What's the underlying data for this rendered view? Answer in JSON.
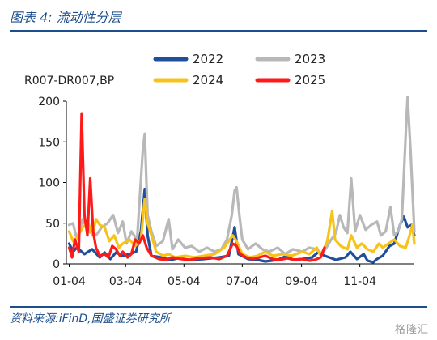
{
  "header": {
    "title": "图表 4:  流动性分层"
  },
  "footer": {
    "source": "资料来源:iFinD,国盛证券研究所",
    "watermark": "格隆汇"
  },
  "chart_data": {
    "type": "line",
    "title": "",
    "ylabel": "R007-DR007,BP",
    "xlabel": "",
    "ylim": [
      0,
      200
    ],
    "yticks": [
      0,
      50,
      100,
      150,
      200
    ],
    "x_domain": [
      "01-01",
      "12-31"
    ],
    "x_tick_labels": [
      "01-04",
      "03-04",
      "05-04",
      "07-04",
      "09-04",
      "11-04"
    ],
    "grid": false,
    "legend_position": "top",
    "series": [
      {
        "name": "2022",
        "color": "#1f4e9c",
        "points": [
          [
            "01-04",
            25
          ],
          [
            "01-08",
            15
          ],
          [
            "01-12",
            20
          ],
          [
            "01-20",
            12
          ],
          [
            "01-28",
            18
          ],
          [
            "02-05",
            8
          ],
          [
            "02-10",
            14
          ],
          [
            "02-16",
            6
          ],
          [
            "02-22",
            14
          ],
          [
            "03-01",
            10
          ],
          [
            "03-08",
            12
          ],
          [
            "03-15",
            15
          ],
          [
            "03-20",
            40
          ],
          [
            "03-24",
            92
          ],
          [
            "03-27",
            35
          ],
          [
            "03-31",
            10
          ],
          [
            "04-10",
            8
          ],
          [
            "04-20",
            5
          ],
          [
            "04-28",
            7
          ],
          [
            "05-10",
            5
          ],
          [
            "05-25",
            6
          ],
          [
            "06-10",
            8
          ],
          [
            "06-20",
            10
          ],
          [
            "06-26",
            45
          ],
          [
            "06-30",
            12
          ],
          [
            "07-10",
            6
          ],
          [
            "07-20",
            5
          ],
          [
            "07-28",
            3
          ],
          [
            "08-10",
            5
          ],
          [
            "08-20",
            10
          ],
          [
            "08-26",
            5
          ],
          [
            "09-05",
            6
          ],
          [
            "09-15",
            8
          ],
          [
            "09-22",
            15
          ],
          [
            "09-28",
            10
          ],
          [
            "10-10",
            5
          ],
          [
            "10-20",
            8
          ],
          [
            "10-25",
            15
          ],
          [
            "11-01",
            6
          ],
          [
            "11-08",
            12
          ],
          [
            "11-12",
            4
          ],
          [
            "11-18",
            2
          ],
          [
            "11-22",
            6
          ],
          [
            "11-28",
            10
          ],
          [
            "12-05",
            22
          ],
          [
            "12-10",
            25
          ],
          [
            "12-16",
            48
          ],
          [
            "12-20",
            58
          ],
          [
            "12-24",
            45
          ],
          [
            "12-28",
            48
          ],
          [
            "12-31",
            35
          ]
        ]
      },
      {
        "name": "2023",
        "color": "#b8b8b8",
        "points": [
          [
            "01-04",
            48
          ],
          [
            "01-08",
            50
          ],
          [
            "01-12",
            30
          ],
          [
            "01-18",
            55
          ],
          [
            "01-24",
            40
          ],
          [
            "02-01",
            35
          ],
          [
            "02-07",
            45
          ],
          [
            "02-13",
            50
          ],
          [
            "02-19",
            60
          ],
          [
            "02-24",
            38
          ],
          [
            "03-01",
            52
          ],
          [
            "03-05",
            25
          ],
          [
            "03-10",
            40
          ],
          [
            "03-16",
            30
          ],
          [
            "03-22",
            140
          ],
          [
            "03-24",
            160
          ],
          [
            "03-27",
            60
          ],
          [
            "03-31",
            40
          ],
          [
            "04-05",
            22
          ],
          [
            "04-12",
            28
          ],
          [
            "04-18",
            55
          ],
          [
            "04-22",
            18
          ],
          [
            "04-28",
            30
          ],
          [
            "05-05",
            20
          ],
          [
            "05-12",
            22
          ],
          [
            "05-20",
            15
          ],
          [
            "05-28",
            20
          ],
          [
            "06-05",
            15
          ],
          [
            "06-12",
            18
          ],
          [
            "06-18",
            30
          ],
          [
            "06-23",
            60
          ],
          [
            "06-26",
            90
          ],
          [
            "06-28",
            94
          ],
          [
            "07-01",
            60
          ],
          [
            "07-04",
            30
          ],
          [
            "07-10",
            18
          ],
          [
            "07-18",
            25
          ],
          [
            "07-25",
            18
          ],
          [
            "08-01",
            15
          ],
          [
            "08-10",
            20
          ],
          [
            "08-18",
            12
          ],
          [
            "08-26",
            18
          ],
          [
            "09-05",
            15
          ],
          [
            "09-12",
            20
          ],
          [
            "09-20",
            18
          ],
          [
            "09-25",
            12
          ],
          [
            "09-30",
            20
          ],
          [
            "10-05",
            30
          ],
          [
            "10-10",
            38
          ],
          [
            "10-14",
            60
          ],
          [
            "10-18",
            45
          ],
          [
            "10-22",
            38
          ],
          [
            "10-26",
            105
          ],
          [
            "10-30",
            40
          ],
          [
            "11-04",
            60
          ],
          [
            "11-10",
            42
          ],
          [
            "11-16",
            48
          ],
          [
            "11-22",
            52
          ],
          [
            "11-26",
            35
          ],
          [
            "12-01",
            40
          ],
          [
            "12-06",
            70
          ],
          [
            "12-10",
            35
          ],
          [
            "12-14",
            40
          ],
          [
            "12-18",
            55
          ],
          [
            "12-22",
            160
          ],
          [
            "12-24",
            205
          ],
          [
            "12-27",
            140
          ],
          [
            "12-31",
            40
          ]
        ]
      },
      {
        "name": "2024",
        "color": "#f7c31b",
        "points": [
          [
            "01-04",
            40
          ],
          [
            "01-08",
            28
          ],
          [
            "01-12",
            32
          ],
          [
            "01-18",
            45
          ],
          [
            "01-24",
            50
          ],
          [
            "01-28",
            35
          ],
          [
            "02-01",
            55
          ],
          [
            "02-05",
            48
          ],
          [
            "02-10",
            45
          ],
          [
            "02-15",
            28
          ],
          [
            "02-20",
            35
          ],
          [
            "02-25",
            20
          ],
          [
            "03-01",
            25
          ],
          [
            "03-08",
            30
          ],
          [
            "03-14",
            22
          ],
          [
            "03-20",
            30
          ],
          [
            "03-24",
            80
          ],
          [
            "03-27",
            50
          ],
          [
            "03-31",
            35
          ],
          [
            "04-05",
            15
          ],
          [
            "04-12",
            10
          ],
          [
            "04-18",
            12
          ],
          [
            "04-25",
            8
          ],
          [
            "05-05",
            10
          ],
          [
            "05-15",
            8
          ],
          [
            "05-25",
            10
          ],
          [
            "06-05",
            12
          ],
          [
            "06-15",
            20
          ],
          [
            "06-24",
            35
          ],
          [
            "06-28",
            28
          ],
          [
            "07-04",
            12
          ],
          [
            "07-12",
            8
          ],
          [
            "07-20",
            10
          ],
          [
            "07-28",
            15
          ],
          [
            "08-05",
            10
          ],
          [
            "08-15",
            12
          ],
          [
            "08-25",
            10
          ],
          [
            "09-05",
            15
          ],
          [
            "09-12",
            12
          ],
          [
            "09-20",
            20
          ],
          [
            "09-24",
            10
          ],
          [
            "10-01",
            28
          ],
          [
            "10-06",
            65
          ],
          [
            "10-09",
            30
          ],
          [
            "10-15",
            22
          ],
          [
            "10-22",
            18
          ],
          [
            "10-26",
            35
          ],
          [
            "11-01",
            20
          ],
          [
            "11-06",
            25
          ],
          [
            "11-12",
            18
          ],
          [
            "11-18",
            15
          ],
          [
            "11-24",
            25
          ],
          [
            "11-28",
            20
          ],
          [
            "12-04",
            25
          ],
          [
            "12-10",
            30
          ],
          [
            "12-16",
            22
          ],
          [
            "12-22",
            20
          ],
          [
            "12-26",
            35
          ],
          [
            "12-29",
            48
          ],
          [
            "12-31",
            25
          ]
        ]
      },
      {
        "name": "2025",
        "color": "#ff1a1a",
        "points": [
          [
            "01-04",
            20
          ],
          [
            "01-07",
            8
          ],
          [
            "01-10",
            30
          ],
          [
            "01-14",
            15
          ],
          [
            "01-17",
            185
          ],
          [
            "01-20",
            60
          ],
          [
            "01-23",
            35
          ],
          [
            "01-26",
            105
          ],
          [
            "01-29",
            40
          ],
          [
            "02-01",
            20
          ],
          [
            "02-05",
            10
          ],
          [
            "02-10",
            12
          ],
          [
            "02-14",
            8
          ],
          [
            "02-18",
            22
          ],
          [
            "02-22",
            18
          ],
          [
            "02-26",
            10
          ],
          [
            "03-01",
            15
          ],
          [
            "03-06",
            8
          ],
          [
            "03-10",
            12
          ],
          [
            "03-14",
            30
          ],
          [
            "03-18",
            25
          ],
          [
            "03-22",
            35
          ],
          [
            "03-26",
            20
          ],
          [
            "03-31",
            10
          ],
          [
            "04-08",
            6
          ],
          [
            "04-15",
            5
          ],
          [
            "04-22",
            8
          ],
          [
            "05-01",
            6
          ],
          [
            "05-10",
            5
          ],
          [
            "05-20",
            7
          ],
          [
            "06-01",
            8
          ],
          [
            "06-10",
            6
          ],
          [
            "06-18",
            10
          ],
          [
            "06-24",
            25
          ],
          [
            "06-28",
            22
          ],
          [
            "07-02",
            12
          ],
          [
            "07-08",
            8
          ],
          [
            "07-15",
            6
          ],
          [
            "07-22",
            8
          ],
          [
            "07-28",
            10
          ],
          [
            "08-05",
            6
          ],
          [
            "08-12",
            5
          ],
          [
            "08-20",
            7
          ],
          [
            "08-28",
            5
          ],
          [
            "09-05",
            6
          ],
          [
            "09-12",
            4
          ],
          [
            "09-18",
            5
          ],
          [
            "09-24",
            8
          ],
          [
            "09-28",
            20
          ]
        ]
      }
    ]
  }
}
